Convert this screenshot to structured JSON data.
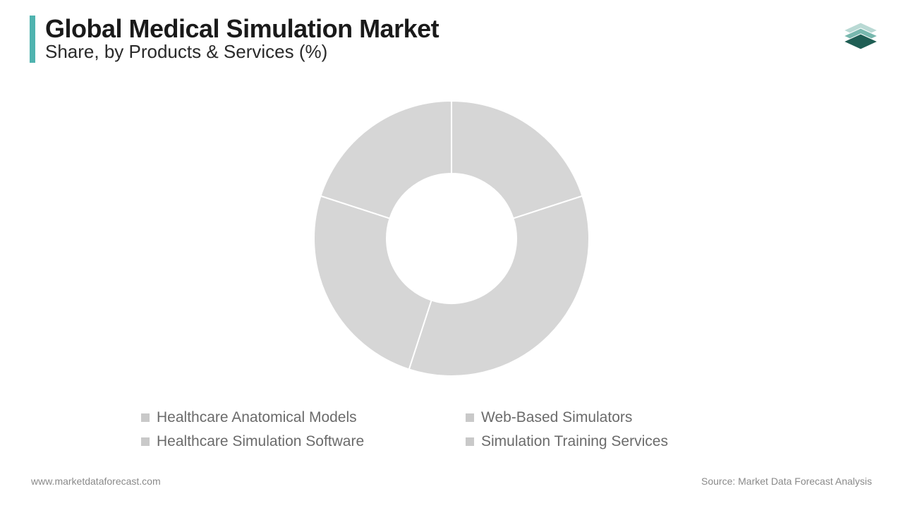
{
  "header": {
    "title": "Global Medical Simulation Market",
    "subtitle": "Share, by Products & Services (%)",
    "accent_color": "#4fb3af",
    "title_color": "#1a1a1a",
    "title_fontsize": 36,
    "subtitle_color": "#2a2a2a",
    "subtitle_fontsize": 26
  },
  "logo": {
    "layer_colors": [
      "#1f5e54",
      "#78b8ae",
      "#b9d9d4"
    ]
  },
  "donut_chart": {
    "type": "donut",
    "slices": [
      {
        "label": "Healthcare Anatomical Models",
        "value": 20,
        "color": "#d6d6d6"
      },
      {
        "label": "Web-Based Simulators",
        "value": 35,
        "color": "#d6d6d6"
      },
      {
        "label": "Simulation Training Services",
        "value": 25,
        "color": "#d6d6d6"
      },
      {
        "label": "Healthcare Simulation Software",
        "value": 20,
        "color": "#d6d6d6"
      }
    ],
    "start_angle_deg": -90,
    "outer_radius": 195,
    "inner_radius": 92,
    "gap_stroke_color": "#ffffff",
    "gap_stroke_width": 2,
    "background_color": "#ffffff"
  },
  "legend": {
    "items": [
      {
        "label": "Healthcare Anatomical Models",
        "swatch_color": "#c9c9c9"
      },
      {
        "label": "Web-Based Simulators",
        "swatch_color": "#c9c9c9"
      },
      {
        "label": "Healthcare Simulation Software",
        "swatch_color": "#c9c9c9"
      },
      {
        "label": "Simulation Training Services",
        "swatch_color": "#c9c9c9"
      }
    ],
    "text_color": "#6b6b6b",
    "fontsize": 21
  },
  "footer": {
    "left": "www.marketdataforecast.com",
    "right": "Source: Market Data Forecast Analysis",
    "text_color": "#8a8a8a",
    "fontsize": 14
  }
}
